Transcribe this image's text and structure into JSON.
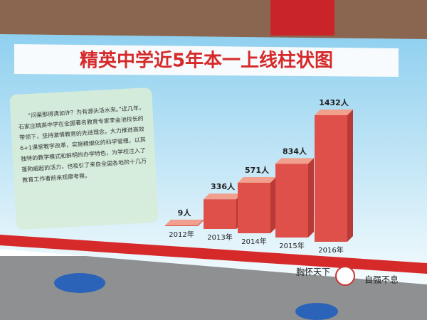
{
  "chart_data": {
    "type": "bar3d",
    "title": "精英中学近5年本一上线柱状图",
    "categories": [
      "2012年",
      "2013年",
      "2014年",
      "2015年",
      "2016年"
    ],
    "values": [
      9,
      336,
      571,
      834,
      1432
    ],
    "value_labels": [
      "9人",
      "336人",
      "571人",
      "834人",
      "1432人"
    ],
    "color": "#e0504a"
  },
  "description": "“问渠那得清如许？为有源头活水来。”近几年，石家庄精英中学在全国著名教育专家李金池校长的带领下，坚持激情教育的先进理念，大力推进高效6+1课堂教学改革，实施精细化的科学管理，以其独特的教学模式和鲜明的办学特色，为学校注入了蓬勃崛起的活力，也吸引了来自全国各地的十几万教育工作者前来观摩考察。",
  "slogans": [
    "胸怀天下",
    "自强不息"
  ]
}
